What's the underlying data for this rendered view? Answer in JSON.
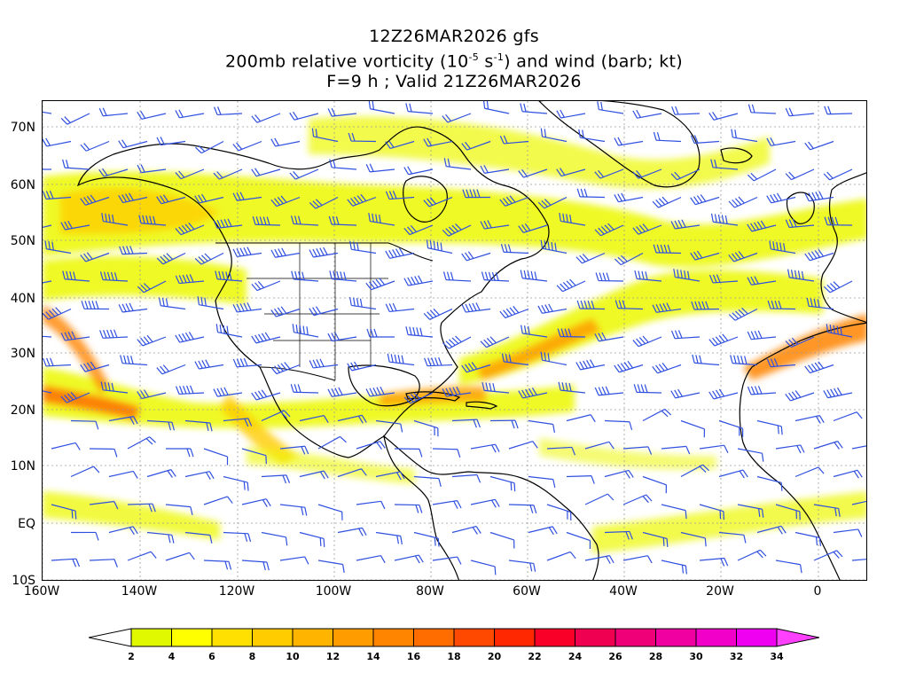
{
  "title": {
    "line1": "12Z26MAR2026 gfs",
    "line2_prefix": "200mb relative vorticity (10",
    "line2_exp1": "-5",
    "line2_mid": " s",
    "line2_exp2": "-1",
    "line2_suffix": ") and wind (barb; kt)",
    "line3": "F=9 h ; Valid 21Z26MAR2026"
  },
  "lat_labels": [
    "70N",
    "60N",
    "50N",
    "40N",
    "30N",
    "20N",
    "10N",
    "EQ",
    "10S"
  ],
  "lon_labels": [
    "160W",
    "140W",
    "120W",
    "100W",
    "80W",
    "60W",
    "40W",
    "20W",
    "0"
  ],
  "colorbar": {
    "labels": [
      "2",
      "4",
      "6",
      "8",
      "10",
      "12",
      "14",
      "16",
      "18",
      "20",
      "22",
      "24",
      "26",
      "28",
      "30",
      "32",
      "34"
    ],
    "colors": [
      "#e0f800",
      "#ffff00",
      "#ffe000",
      "#ffcc00",
      "#ffb400",
      "#ff9c00",
      "#ff8400",
      "#ff6c00",
      "#ff4800",
      "#ff2800",
      "#f80028",
      "#f00050",
      "#f00078",
      "#f000a0",
      "#f000c8",
      "#f000f0"
    ],
    "high_arrow_color": "#ff40ff"
  },
  "palette": {
    "barb_color": "#3050e0",
    "coast_color": "#000000",
    "grid_color": "#9a9a9a"
  }
}
